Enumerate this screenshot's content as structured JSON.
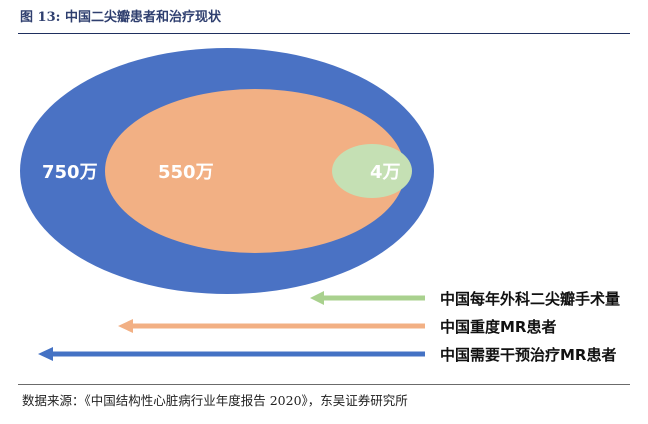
{
  "title": "图 13:  中国二尖瓣患者和治疗现状",
  "ellipses": {
    "outer_label": "750万",
    "middle_label": "550万",
    "inner_label": "4万",
    "outer_color": "#4a72c4",
    "middle_color": "#f2b084",
    "inner_color": "#c5e0b4"
  },
  "arrows": [
    {
      "label": "中国每年外科二尖瓣手术量",
      "color": "#a9d18e"
    },
    {
      "label": "中国重度MR患者",
      "color": "#f2b084"
    },
    {
      "label": "中国需要干预治疗MR患者",
      "color": "#4472c4"
    }
  ],
  "source": "数据来源：《中国结构性心脏病行业年度报告 2020》，东吴证券研究所"
}
